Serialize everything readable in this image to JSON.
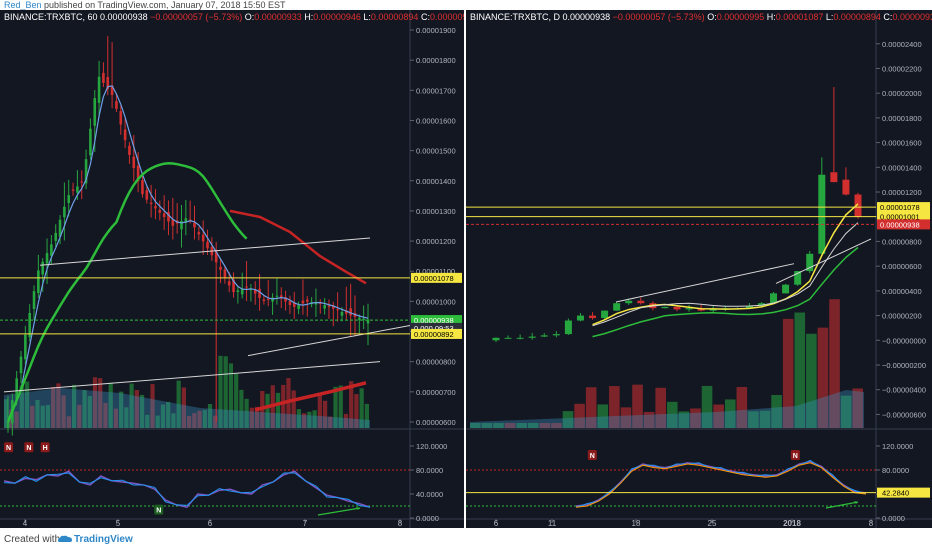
{
  "header": {
    "user": "Red_Ben",
    "published": "published on TradingView.com, January 07, 2018 15:50 EST"
  },
  "footer": {
    "created_with": "Created with",
    "brand": "TradingView"
  },
  "colors": {
    "background": "#131722",
    "up": "#26a63f",
    "down": "#d32f2f",
    "yellow": "#f5e642",
    "blue_ma": "#6f9fe6",
    "green_ma": "#2dbd3a",
    "red_ma": "#c62424"
  },
  "chart_data": [
    {
      "type": "candlestick",
      "symbol": "BINANCE:TRXBTC, 60",
      "legend": {
        "last": "0.00000938",
        "change": "−0.00000057 (−5.73%)",
        "O": "0.00000933",
        "H": "0.00000946",
        "L": "0.00000894",
        "C": "0.00000938"
      },
      "x_ticks": [
        "4",
        "5",
        "6",
        "7",
        "8"
      ],
      "y_ticks": [
        "0.00001900",
        "0.00001800",
        "0.00001700",
        "0.00001600",
        "0.00001500",
        "0.00001400",
        "0.00001300",
        "0.00001200",
        "0.00001100",
        "0.00001000",
        "0.00000900",
        "0.00000800",
        "0.00000700",
        "0.00000600"
      ],
      "ylim": [
        5.8e-06,
        1.92e-05
      ],
      "price_labels": [
        {
          "text": "0.00001078",
          "value": 1.078e-05,
          "style": "yellow"
        },
        {
          "text": "0.00000938",
          "value": 9.38e-06,
          "style": "green"
        },
        {
          "text": "0.000 09:53",
          "value": 9.12e-06,
          "style": "dark"
        },
        {
          "text": "0.00000892",
          "value": 8.92e-06,
          "style": "yellow"
        }
      ],
      "horizontal_lines": [
        1.078e-05,
        8.92e-06
      ],
      "indicator": {
        "y_ticks": [
          "120.0000",
          "80.0000",
          "40.0000",
          "0.0000"
        ],
        "ylim": [
          0,
          130
        ],
        "markers": [
          {
            "label": "N",
            "x": 0.01,
            "y": 118,
            "style": "red"
          },
          {
            "label": "N",
            "x": 0.06,
            "y": 118,
            "style": "red"
          },
          {
            "label": "H",
            "x": 0.1,
            "y": 118,
            "style": "red"
          },
          {
            "label": "N",
            "x": 0.38,
            "y": 14,
            "style": "green"
          }
        ]
      }
    },
    {
      "type": "candlestick",
      "symbol": "BINANCE:TRXBTC, D",
      "legend": {
        "last": "0.00000938",
        "change": "−0.00000057 (−5.73%)",
        "O": "0.00000995",
        "H": "0.00001087",
        "L": "0.00000894",
        "C": "0.00000938"
      },
      "x_ticks": [
        "6",
        "11",
        "18",
        "25",
        "2018",
        "8"
      ],
      "y_ticks": [
        "0.00002400",
        "0.00002200",
        "0.00002000",
        "0.00001800",
        "0.00001600",
        "0.00001400",
        "0.00001200",
        "0.00001000",
        "0.00000800",
        "0.00000600",
        "0.00000400",
        "0.00000200",
        "−0.00000000",
        "−0.00000200",
        "−0.00000400",
        "−0.00000600"
      ],
      "ylim": [
        -7.1e-06,
        2.56e-05
      ],
      "price_labels": [
        {
          "text": "0.00001078",
          "value": 1.078e-05,
          "style": "yellow"
        },
        {
          "text": "0.00001001",
          "value": 1.001e-05,
          "style": "yellow"
        },
        {
          "text": "0.00000938",
          "value": 9.38e-06,
          "style": "red"
        }
      ],
      "horizontal_lines": [
        1.078e-05,
        1.001e-05
      ],
      "indicator": {
        "y_ticks": [
          "120.0000",
          "80.0000",
          "40.0000",
          "0.0000"
        ],
        "ylim": [
          0,
          130
        ],
        "value_label": {
          "text": "42.2840",
          "value": 42.284
        },
        "markers": [
          {
            "label": "N",
            "x": 0.3,
            "y": 105,
            "style": "red"
          },
          {
            "label": "N",
            "x": 0.8,
            "y": 105,
            "style": "red"
          }
        ]
      }
    }
  ]
}
